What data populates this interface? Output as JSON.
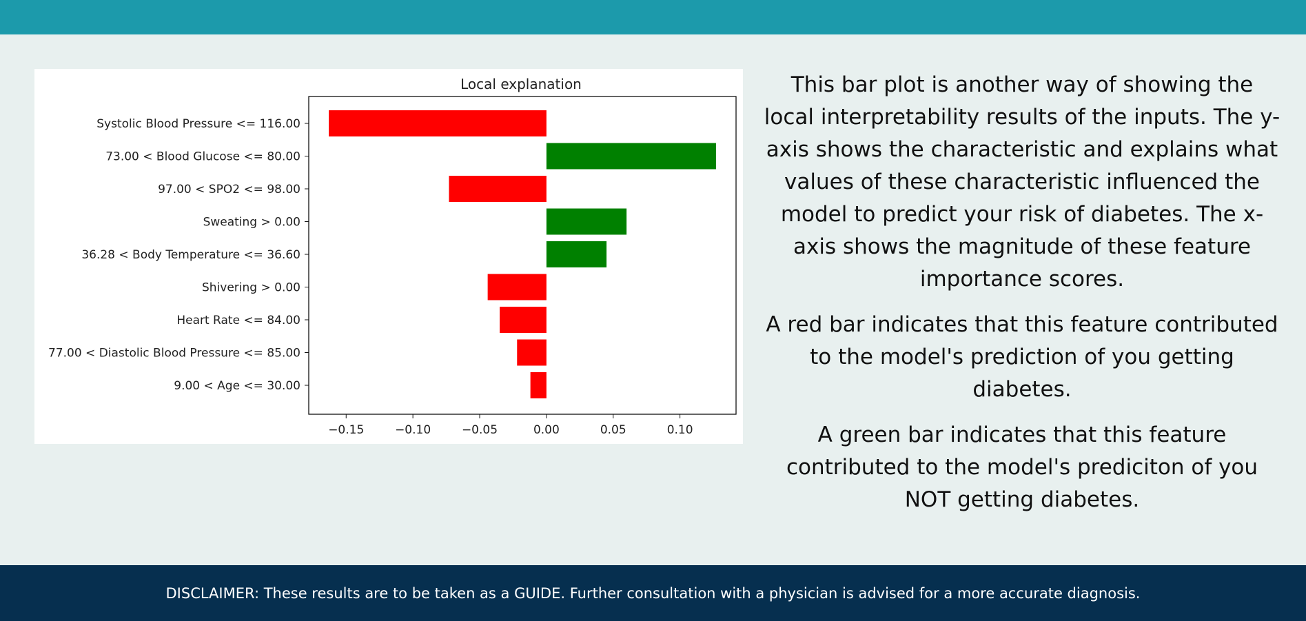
{
  "colors": {
    "header": "#1c9aab",
    "background": "#e8f0ef",
    "footer": "#062f4f",
    "negative_bar": "#ff0000",
    "positive_bar": "#008000"
  },
  "chart_data": {
    "type": "bar",
    "orientation": "horizontal",
    "title": "Local explanation",
    "categories": [
      "Systolic Blood Pressure <= 116.00",
      "73.00 < Blood Glucose <= 80.00",
      "97.00 < SPO2 <= 98.00",
      "Sweating > 0.00",
      "36.28 < Body Temperature <= 36.60",
      "Shivering > 0.00",
      "Heart Rate <= 84.00",
      "77.00 < Diastolic Blood Pressure <= 85.00",
      "9.00 < Age <= 30.00"
    ],
    "values": [
      -0.163,
      0.127,
      -0.073,
      0.06,
      0.045,
      -0.044,
      -0.035,
      -0.022,
      -0.012
    ],
    "xticks": [
      "−0.15",
      "−0.10",
      "−0.05",
      "0.00",
      "0.05",
      "0.10"
    ],
    "xtick_values": [
      -0.15,
      -0.1,
      -0.05,
      0.0,
      0.05,
      0.1
    ],
    "xlim": [
      -0.178,
      0.142
    ],
    "xlabel": "",
    "ylabel": "",
    "grid": false,
    "legend": "none"
  },
  "explanation": {
    "paragraph1": "This bar plot is another way of showing the local interpretability results of the inputs. The y-axis shows the characteristic and explains what values of these characteristic influenced the model to predict your risk of diabetes. The x-axis shows the magnitude of these feature importance scores.",
    "paragraph2": "A red bar indicates that this feature contributed to the model's prediction of you getting diabetes.",
    "paragraph3": "A green bar indicates that this feature contributed to the model's prediciton of you NOT getting diabetes."
  },
  "footer": {
    "disclaimer": "DISCLAIMER: These results are to be taken as a GUIDE. Further consultation with a physician is advised for a more accurate diagnosis."
  }
}
